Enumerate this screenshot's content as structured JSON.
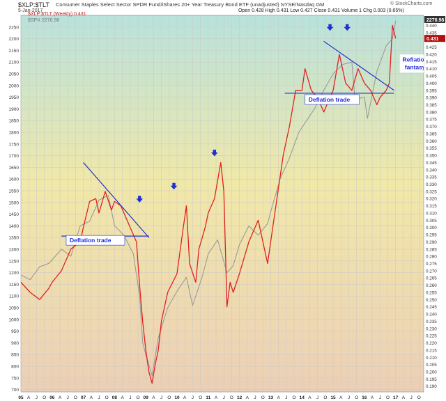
{
  "header": {
    "symbol": "$XLP:$TLT",
    "description": "Consumer Staples Select Sector SPDR Fund/iShares 20+ Year Treasury Bond ETF (unadjusted)  NYSE/Nasdaq GM",
    "date": "5-Jan-2017",
    "quote": "Open 0.428  High 0.431  Low 0.427  Close 0.431  Volume 1  Chg 0.003 (0.65%)",
    "watermark": "© StockCharts.com"
  },
  "legend": {
    "series1": "$XLP:$TLT (Weekly) 0.431",
    "series2": "$SPX 2276.98"
  },
  "annotations": [
    {
      "id": "deflation-trade-1",
      "text": "Deflation trade"
    },
    {
      "id": "deflation-trade-2",
      "text": "Deflation trade"
    },
    {
      "id": "reflation-fantasy",
      "text": "Reflation\nfantasy"
    }
  ],
  "colors": {
    "ratio_line": "#e02020",
    "spx_line": "#9a9a9a",
    "annotation": "#1f2fd6",
    "grid": "#c9c9c9",
    "bg_top": "#b8e2dc",
    "bg_mid": "#f1e8a8",
    "bg_bottom": "#eccfb6"
  },
  "chart_data": {
    "type": "line",
    "title": "",
    "x_ticks": [
      "05",
      "A",
      "J",
      "O",
      "06",
      "A",
      "J",
      "O",
      "07",
      "A",
      "J",
      "O",
      "08",
      "A",
      "J",
      "O",
      "09",
      "A",
      "J",
      "O",
      "10",
      "A",
      "J",
      "O",
      "11",
      "A",
      "J",
      "O",
      "12",
      "A",
      "J",
      "O",
      "13",
      "A",
      "J",
      "O",
      "14",
      "A",
      "J",
      "O",
      "15",
      "A",
      "J",
      "O",
      "16",
      "A",
      "J",
      "O",
      "17",
      "A",
      "J",
      "O"
    ],
    "x_range": [
      2005.0,
      2017.9
    ],
    "left_axis": {
      "label": "$SPX",
      "range": [
        690,
        2300
      ],
      "ticks": [
        700,
        750,
        800,
        850,
        900,
        950,
        1000,
        1050,
        1100,
        1150,
        1200,
        1250,
        1300,
        1350,
        1400,
        1450,
        1500,
        1550,
        1600,
        1650,
        1700,
        1750,
        1800,
        1850,
        1900,
        1950,
        2000,
        2050,
        2100,
        2150,
        2200,
        2250
      ]
    },
    "right_axis": {
      "label": "$XLP:$TLT",
      "range": [
        0.186,
        0.447
      ],
      "ticks": [
        "0.190",
        "0.195",
        "0.200",
        "0.205",
        "0.210",
        "0.215",
        "0.220",
        "0.225",
        "0.230",
        "0.235",
        "0.240",
        "0.245",
        "0.250",
        "0.255",
        "0.260",
        "0.265",
        "0.270",
        "0.275",
        "0.280",
        "0.285",
        "0.290",
        "0.295",
        "0.300",
        "0.305",
        "0.310",
        "0.315",
        "0.320",
        "0.325",
        "0.330",
        "0.335",
        "0.340",
        "0.345",
        "0.350",
        "0.355",
        "0.360",
        "0.365",
        "0.370",
        "0.375",
        "0.380",
        "0.385",
        "0.390",
        "0.395",
        "0.400",
        "0.405",
        "0.410",
        "0.415",
        "0.420",
        "0.425",
        "0.430",
        "0.435",
        "0.440",
        "0.445"
      ],
      "value_flags": [
        "2276.98",
        "0.431"
      ]
    },
    "series": [
      {
        "name": "$XLP:$TLT (Weekly) 0.431",
        "axis": "right",
        "x": [
          2005.0,
          2005.3,
          2005.6,
          2005.9,
          2006.0,
          2006.3,
          2006.6,
          2006.9,
          2007.0,
          2007.2,
          2007.4,
          2007.5,
          2007.7,
          2007.9,
          2008.0,
          2008.2,
          2008.4,
          2008.5,
          2008.7,
          2008.8,
          2008.9,
          2009.0,
          2009.1,
          2009.2,
          2009.3,
          2009.4,
          2009.5,
          2009.7,
          2010.0,
          2010.2,
          2010.3,
          2010.4,
          2010.6,
          2010.7,
          2010.9,
          2011.0,
          2011.2,
          2011.4,
          2011.5,
          2011.6,
          2011.7,
          2011.8,
          2012.0,
          2012.3,
          2012.6,
          2012.9,
          2013.0,
          2013.2,
          2013.4,
          2013.6,
          2013.8,
          2014.0,
          2014.1,
          2014.3,
          2014.5,
          2014.7,
          2015.0,
          2015.2,
          2015.4,
          2015.6,
          2015.8,
          2016.0,
          2016.2,
          2016.4,
          2016.5,
          2016.7,
          2016.8,
          2016.9,
          2017.0
        ],
        "y": [
          0.262,
          0.255,
          0.25,
          0.258,
          0.262,
          0.27,
          0.285,
          0.29,
          0.3,
          0.318,
          0.32,
          0.31,
          0.325,
          0.312,
          0.318,
          0.315,
          0.305,
          0.3,
          0.29,
          0.26,
          0.235,
          0.215,
          0.2,
          0.192,
          0.205,
          0.215,
          0.235,
          0.255,
          0.268,
          0.3,
          0.315,
          0.275,
          0.262,
          0.285,
          0.3,
          0.31,
          0.32,
          0.345,
          0.325,
          0.245,
          0.262,
          0.255,
          0.268,
          0.29,
          0.305,
          0.275,
          0.29,
          0.32,
          0.35,
          0.37,
          0.395,
          0.395,
          0.41,
          0.395,
          0.39,
          0.38,
          0.395,
          0.42,
          0.4,
          0.395,
          0.41,
          0.4,
          0.395,
          0.385,
          0.39,
          0.395,
          0.4,
          0.44,
          0.431
        ]
      },
      {
        "name": "$SPX 2276.98",
        "axis": "left",
        "x": [
          2005.0,
          2005.3,
          2005.6,
          2005.9,
          2006.3,
          2006.6,
          2006.9,
          2007.2,
          2007.5,
          2007.8,
          2008.0,
          2008.3,
          2008.6,
          2008.8,
          2008.9,
          2009.0,
          2009.2,
          2009.4,
          2009.7,
          2010.0,
          2010.3,
          2010.5,
          2010.8,
          2011.0,
          2011.3,
          2011.6,
          2011.8,
          2012.0,
          2012.3,
          2012.6,
          2012.9,
          2013.0,
          2013.3,
          2013.6,
          2013.9,
          2014.1,
          2014.4,
          2014.7,
          2015.0,
          2015.3,
          2015.6,
          2015.7,
          2016.0,
          2016.1,
          2016.4,
          2016.7,
          2016.9,
          2017.0
        ],
        "y": [
          1190,
          1170,
          1225,
          1240,
          1300,
          1270,
          1400,
          1420,
          1510,
          1530,
          1400,
          1360,
          1280,
          1100,
          900,
          850,
          760,
          920,
          1050,
          1120,
          1180,
          1060,
          1180,
          1280,
          1340,
          1200,
          1230,
          1320,
          1400,
          1360,
          1410,
          1460,
          1600,
          1690,
          1800,
          1840,
          1900,
          1980,
          2050,
          2090,
          2100,
          1940,
          1950,
          1860,
          2060,
          2170,
          2200,
          2276.98
        ]
      }
    ],
    "annotations_arrows_x": [
      2008.8,
      2009.9,
      2011.2,
      2014.9,
      2015.45
    ]
  }
}
